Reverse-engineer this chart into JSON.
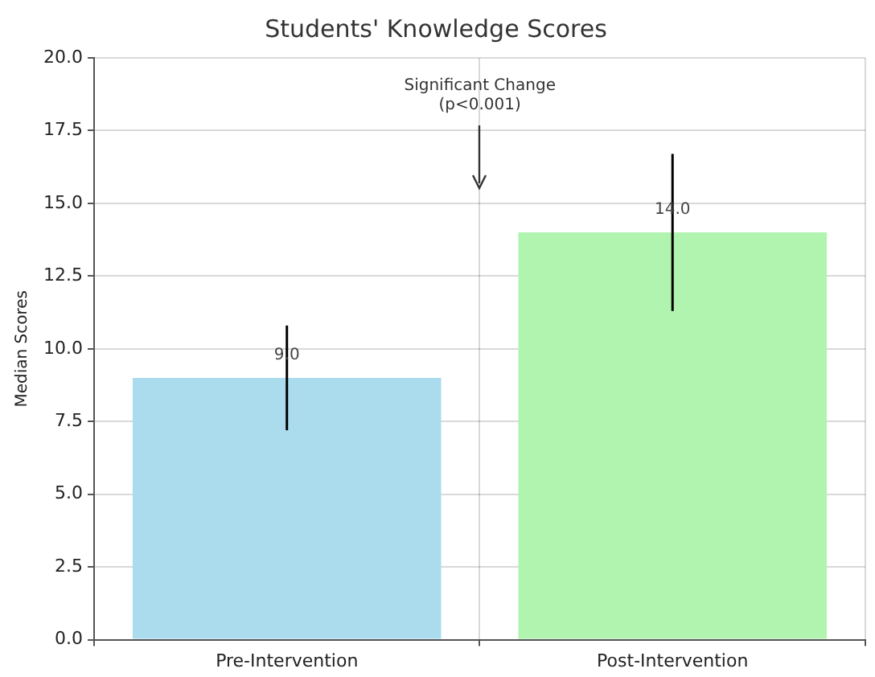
{
  "chart_data": {
    "type": "bar",
    "title": "Students' Knowledge Scores",
    "ylabel": "Median Scores",
    "categories": [
      "Pre-Intervention",
      "Post-Intervention"
    ],
    "values": [
      9,
      14
    ],
    "colors": [
      "#abdcee",
      "#b0f4b0"
    ],
    "errors": [
      1.8,
      2.7
    ],
    "value_labels": [
      "9.0",
      "14.0"
    ],
    "annotations": [
      "Significant Change\n(p<0.001)"
    ],
    "ylim": [
      0,
      20
    ],
    "yticks": [
      {
        "value": 0,
        "label": "0.0"
      },
      {
        "value": 2.5,
        "label": "2.5"
      },
      {
        "value": 5,
        "label": "5.0"
      },
      {
        "value": 7.5,
        "label": "7.5"
      },
      {
        "value": 10,
        "label": "10.0"
      },
      {
        "value": 12.5,
        "label": "12.5"
      },
      {
        "value": 15,
        "label": "15.0"
      },
      {
        "value": 17.5,
        "label": "17.5"
      },
      {
        "value": 20,
        "label": "20.0"
      }
    ],
    "grid": true,
    "legend": false
  }
}
